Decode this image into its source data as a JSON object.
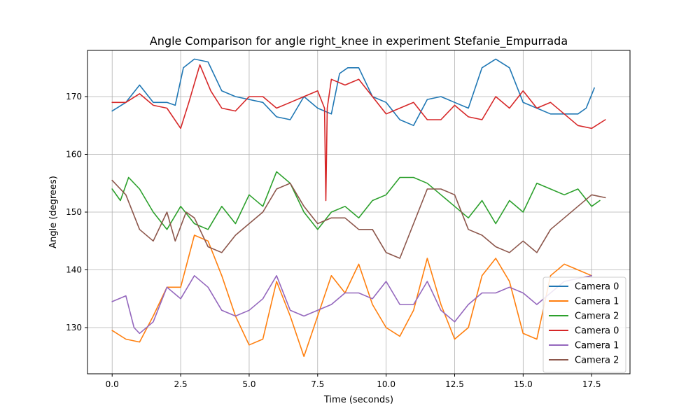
{
  "chart_data": {
    "type": "line",
    "title": "Angle Comparison for angle right_knee in experiment Stefanie_Empurrada",
    "xlabel": "Time (seconds)",
    "ylabel": "Angle (degrees)",
    "xlim": [
      -0.9,
      18.9
    ],
    "ylim": [
      122,
      178
    ],
    "xticks": [
      0,
      2.5,
      5,
      7.5,
      10,
      12.5,
      15,
      17.5
    ],
    "xtick_labels": [
      "0.0",
      "2.5",
      "5.0",
      "7.5",
      "10.0",
      "12.5",
      "15.0",
      "17.5"
    ],
    "yticks": [
      130,
      140,
      150,
      160,
      170
    ],
    "ytick_labels": [
      "130",
      "140",
      "150",
      "160",
      "170"
    ],
    "grid": true,
    "legend_position": "lower-right",
    "series": [
      {
        "name": "Camera 0",
        "color": "#1f77b4",
        "x": [
          0,
          0.5,
          1.0,
          1.5,
          2.0,
          2.3,
          2.6,
          3.0,
          3.5,
          4.0,
          4.5,
          5.0,
          5.5,
          6.0,
          6.5,
          7.0,
          7.5,
          8.0,
          8.3,
          8.6,
          9.0,
          9.5,
          10.0,
          10.5,
          11.0,
          11.5,
          12.0,
          12.5,
          13.0,
          13.5,
          14.0,
          14.5,
          15.0,
          15.5,
          16.0,
          16.5,
          17.0,
          17.3,
          17.6
        ],
        "y": [
          167.5,
          169,
          172,
          169,
          169,
          168.5,
          175,
          176.5,
          176,
          171,
          170,
          169.5,
          169,
          166.5,
          166,
          170,
          168,
          167,
          174,
          175,
          175,
          170,
          169,
          166,
          165,
          169.5,
          170,
          169,
          168,
          175,
          176.5,
          175,
          169,
          168,
          167,
          167,
          167,
          168,
          171.5
        ]
      },
      {
        "name": "Camera 1",
        "color": "#ff7f0e",
        "x": [
          0,
          0.5,
          1.0,
          1.5,
          2.0,
          2.5,
          3.0,
          3.5,
          4.0,
          4.5,
          5.0,
          5.5,
          6.0,
          6.5,
          7.0,
          7.5,
          8.0,
          8.5,
          9.0,
          9.5,
          10.0,
          10.5,
          11.0,
          11.5,
          12.0,
          12.5,
          13.0,
          13.5,
          14.0,
          14.5,
          15.0,
          15.5,
          16.0,
          16.5,
          17.0,
          17.5
        ],
        "y": [
          129.5,
          128,
          127.5,
          132,
          137,
          137,
          146,
          145,
          139,
          132,
          127,
          128,
          138,
          132,
          125,
          132,
          139,
          136,
          141,
          134,
          130,
          128.5,
          133,
          142,
          134,
          128,
          130,
          139,
          142,
          138,
          129,
          128,
          139,
          141,
          140,
          139
        ]
      },
      {
        "name": "Camera 2",
        "color": "#2ca02c",
        "x": [
          0,
          0.3,
          0.6,
          1.0,
          1.5,
          2.0,
          2.5,
          3.0,
          3.5,
          4.0,
          4.5,
          5.0,
          5.5,
          6.0,
          6.5,
          7.0,
          7.5,
          8.0,
          8.5,
          9.0,
          9.5,
          10.0,
          10.5,
          11.0,
          11.5,
          12.0,
          12.5,
          13.0,
          13.5,
          14.0,
          14.5,
          15.0,
          15.5,
          16.0,
          16.5,
          17.0,
          17.5,
          17.8
        ],
        "y": [
          154,
          152,
          156,
          154,
          150,
          147,
          151,
          148,
          147,
          151,
          148,
          153,
          151,
          157,
          155,
          150,
          147,
          150,
          151,
          149,
          152,
          153,
          156,
          156,
          155,
          153,
          151,
          149,
          152,
          148,
          152,
          150,
          155,
          154,
          153,
          154,
          151,
          152
        ]
      },
      {
        "name": "Camera 0",
        "color": "#d62728",
        "x": [
          0,
          0.5,
          1.0,
          1.5,
          2.0,
          2.5,
          2.8,
          3.2,
          3.6,
          4.0,
          4.5,
          5.0,
          5.5,
          6.0,
          6.5,
          7.0,
          7.5,
          7.75,
          7.8,
          7.85,
          8.0,
          8.5,
          9.0,
          9.5,
          10.0,
          10.5,
          11.0,
          11.5,
          12.0,
          12.5,
          13.0,
          13.5,
          14.0,
          14.5,
          15.0,
          15.5,
          16.0,
          16.5,
          17.0,
          17.5,
          18.0
        ],
        "y": [
          169,
          169,
          170.5,
          168.5,
          168,
          164.5,
          169,
          175.5,
          171,
          168,
          167.5,
          170,
          170,
          168,
          169,
          170,
          171,
          168,
          152,
          168,
          173,
          172,
          173,
          170,
          167,
          168,
          169,
          166,
          166,
          168.5,
          166.5,
          166,
          170,
          168,
          171,
          168,
          169,
          167,
          165,
          164.5,
          166
        ]
      },
      {
        "name": "Camera 1",
        "color": "#9467bd",
        "x": [
          0,
          0.5,
          0.8,
          1.0,
          1.5,
          2.0,
          2.5,
          3.0,
          3.5,
          4.0,
          4.5,
          5.0,
          5.5,
          6.0,
          6.5,
          7.0,
          7.5,
          8.0,
          8.5,
          9.0,
          9.5,
          10.0,
          10.5,
          11.0,
          11.5,
          12.0,
          12.5,
          13.0,
          13.5,
          14.0,
          14.5,
          15.0,
          15.5,
          16.0,
          16.5,
          17.0,
          17.5
        ],
        "y": [
          134.5,
          135.5,
          130,
          129,
          131,
          137,
          135,
          139,
          137,
          133,
          132,
          133,
          135,
          139,
          133,
          132,
          133,
          134,
          136,
          136,
          135,
          138,
          134,
          134,
          138,
          133,
          131,
          134,
          136,
          136,
          137,
          136,
          134,
          136,
          138,
          138.5,
          139
        ]
      },
      {
        "name": "Camera 2",
        "color": "#8c564b",
        "x": [
          0,
          0.5,
          1.0,
          1.5,
          2.0,
          2.3,
          2.7,
          3.0,
          3.5,
          4.0,
          4.5,
          5.0,
          5.5,
          6.0,
          6.5,
          7.0,
          7.5,
          8.0,
          8.5,
          9.0,
          9.5,
          10.0,
          10.5,
          11.0,
          11.5,
          12.0,
          12.5,
          13.0,
          13.5,
          14.0,
          14.5,
          15.0,
          15.5,
          16.0,
          16.5,
          17.0,
          17.5,
          18.0
        ],
        "y": [
          155.5,
          153,
          147,
          145,
          150,
          145,
          150,
          149,
          144,
          143,
          146,
          148,
          150,
          154,
          155,
          151,
          148,
          149,
          149,
          147,
          147,
          143,
          142,
          148,
          154,
          154,
          153,
          147,
          146,
          144,
          143,
          145,
          143,
          147,
          149,
          151,
          153,
          152.5
        ]
      }
    ]
  }
}
